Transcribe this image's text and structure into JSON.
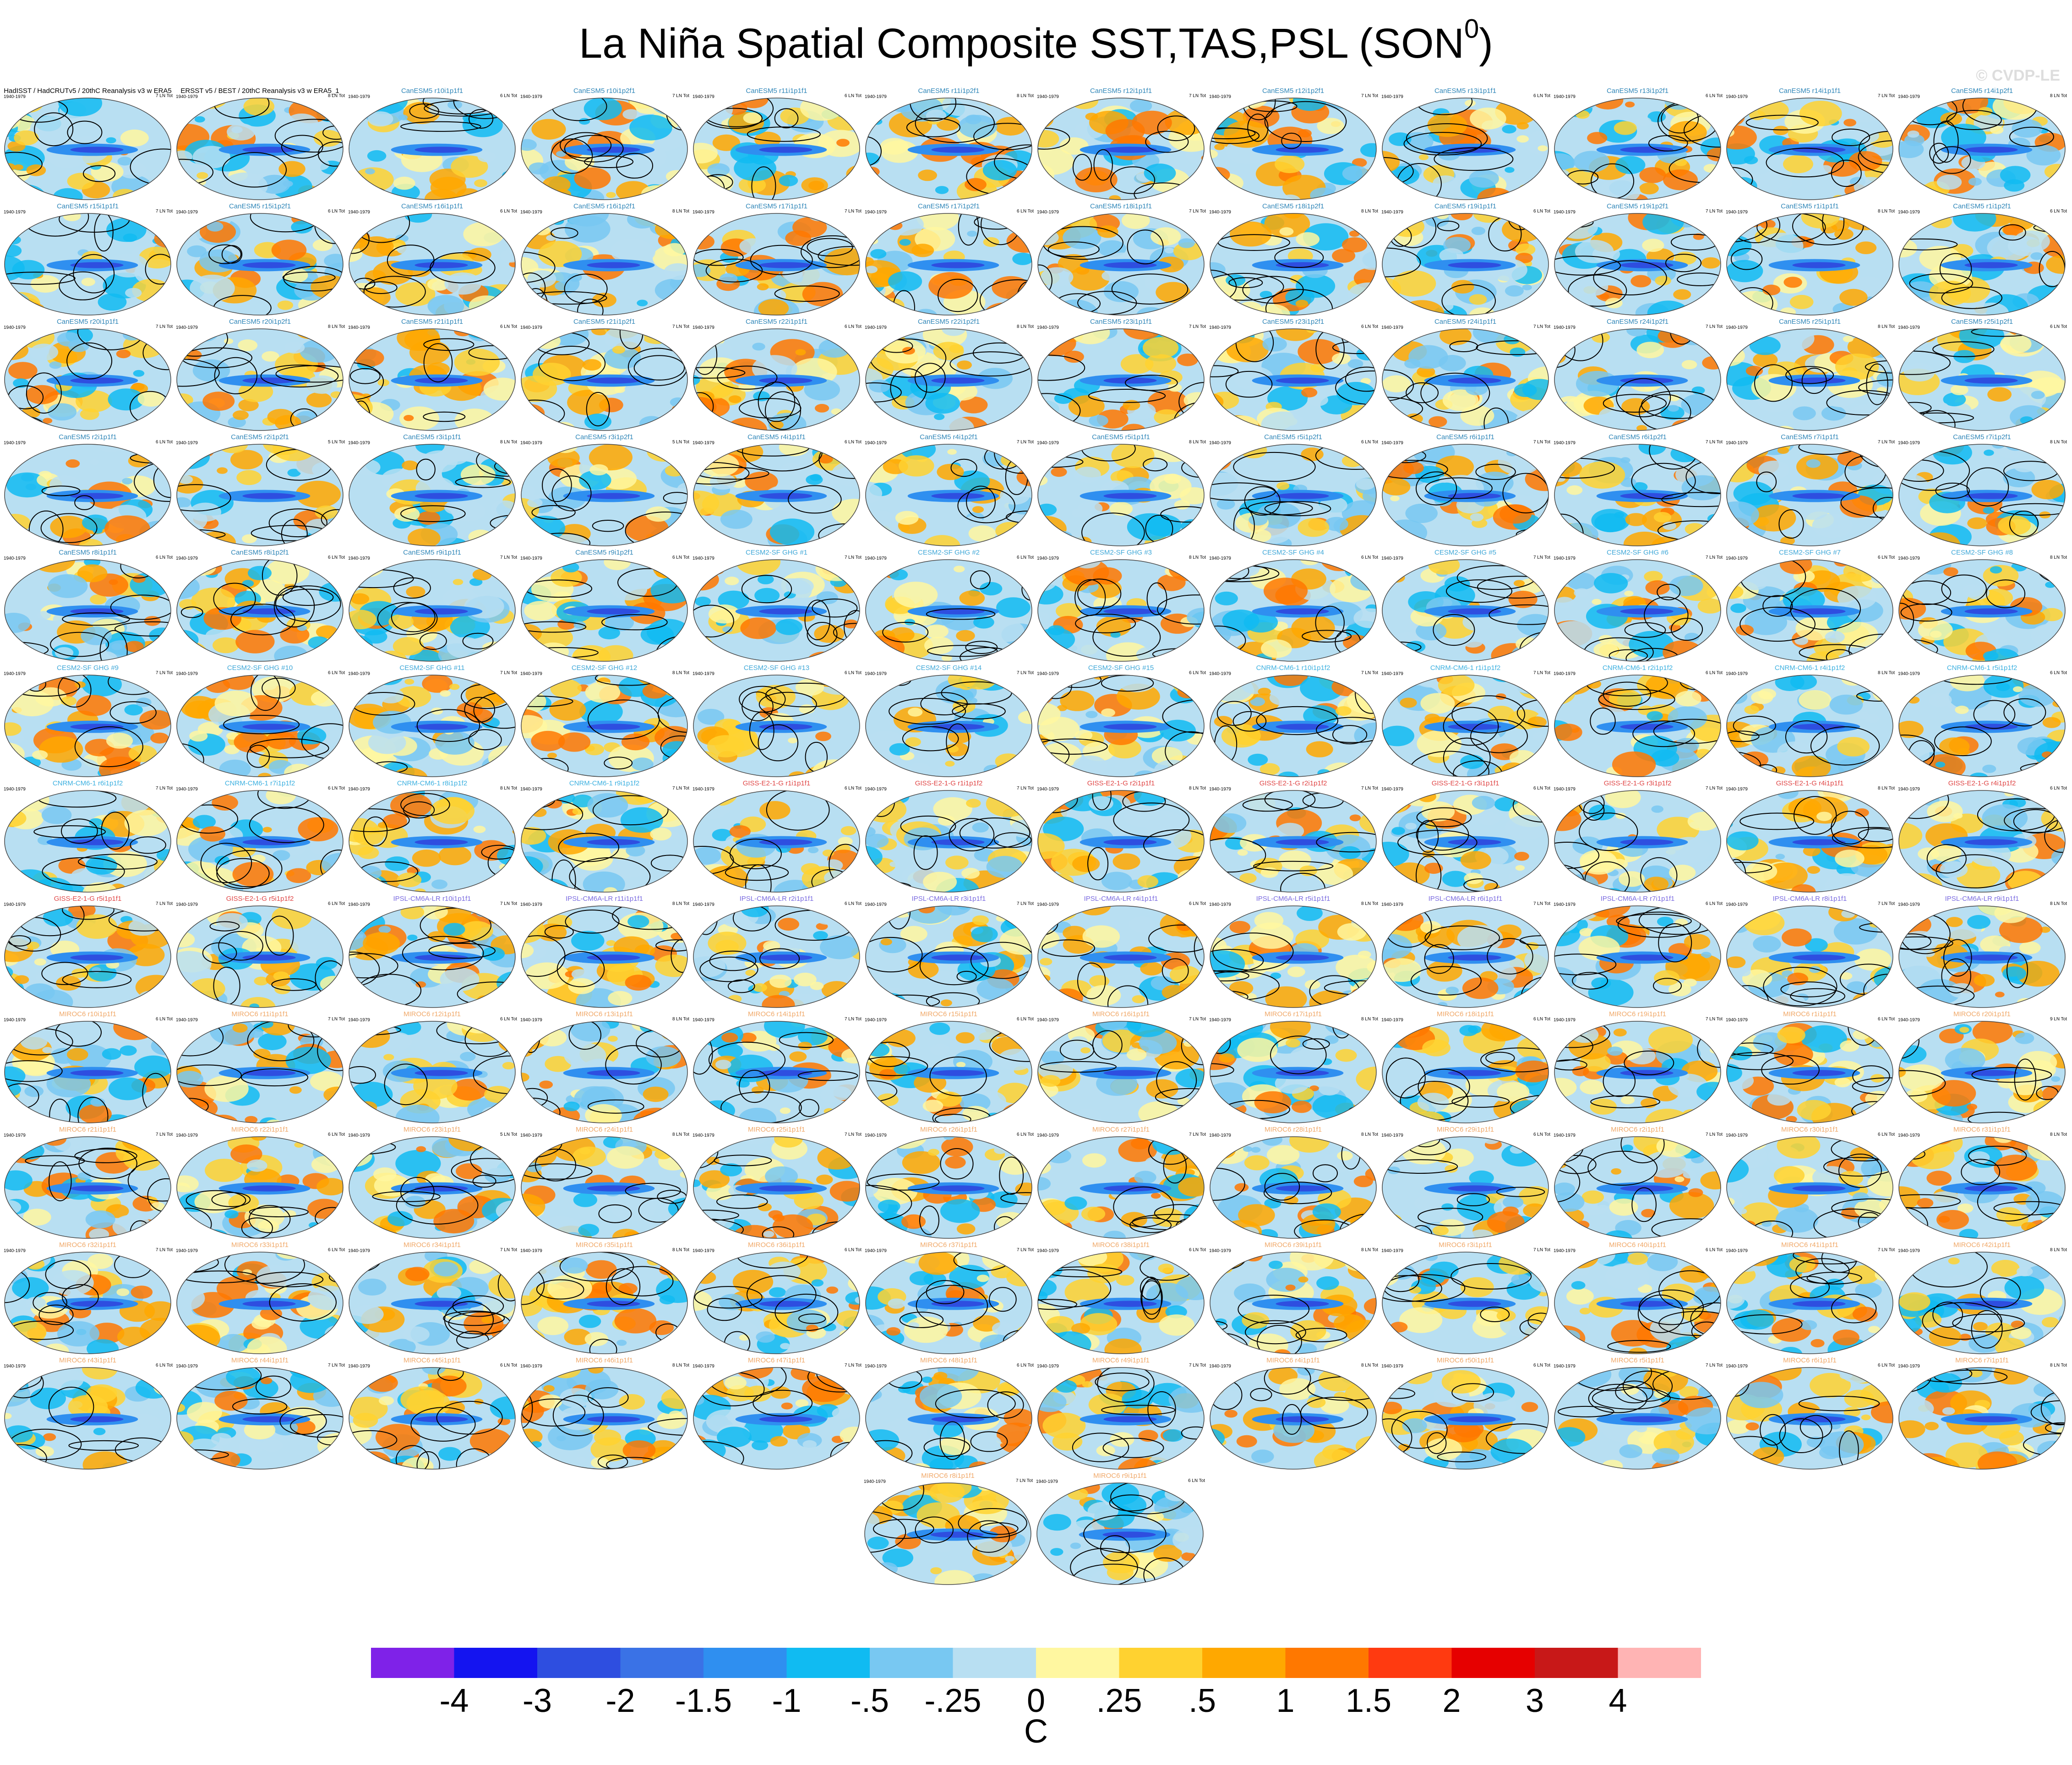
{
  "title": "La Niña Spatial Composite SST,TAS,PSL (SON",
  "title_superscript": "0",
  "title_close": ")",
  "watermark": "© CVDP-LE",
  "period": "1940-1979",
  "colors": {
    "ramp": [
      "#7f22e8",
      "#1414f0",
      "#2e4ee0",
      "#3a72e6",
      "#2f8ff0",
      "#10bbf2",
      "#78c8f2",
      "#b8dff2",
      "#fff7a0",
      "#ffd230",
      "#ffa800",
      "#ff7800",
      "#ff3a10",
      "#e60000",
      "#c81818",
      "#ffb4b4"
    ],
    "contour": "#000000"
  },
  "colorbar": {
    "labels": [
      "-4",
      "-3",
      "-2",
      "-1.5",
      "-1",
      "-.5",
      "-.25",
      "0",
      ".25",
      ".5",
      "1",
      "1.5",
      "2",
      "3",
      "4"
    ],
    "units": "C"
  },
  "chart_data": {
    "type": "heatmap",
    "description_fields": "Small-multiple global maps; shading = SST/TAS composite anomaly, contours = PSL composite anomaly",
    "panels": [
      {
        "name": "HadISST / HadCRUTv5 / 20thC Reanalysis v3 w ERA5",
        "stat": "7 LN Tot",
        "color": "#000000"
      },
      {
        "name": "ERSST v5 / BEST / 20thC Reanalysis v3 w ERA5_1",
        "stat": "8 LN Tot",
        "color": "#000000"
      },
      {
        "name": "CanESM5 r10i1p1f1",
        "stat": "6 LN Tot",
        "color": "#2f86b8"
      },
      {
        "name": "CanESM5 r10i1p2f1",
        "stat": "7 LN Tot",
        "color": "#2f86b8"
      },
      {
        "name": "CanESM5 r11i1p1f1",
        "stat": "6 LN Tot",
        "color": "#2f86b8"
      },
      {
        "name": "CanESM5 r11i1p2f1",
        "stat": "8 LN Tot",
        "color": "#2f86b8"
      },
      {
        "name": "CanESM5 r12i1p1f1",
        "stat": "7 LN Tot",
        "color": "#2f86b8"
      },
      {
        "name": "CanESM5 r12i1p2f1",
        "stat": "7 LN Tot",
        "color": "#2f86b8"
      },
      {
        "name": "CanESM5 r13i1p1f1",
        "stat": "6 LN Tot",
        "color": "#2f86b8"
      },
      {
        "name": "CanESM5 r13i1p2f1",
        "stat": "6 LN Tot",
        "color": "#2f86b8"
      },
      {
        "name": "CanESM5 r14i1p1f1",
        "stat": "7 LN Tot",
        "color": "#2f86b8"
      },
      {
        "name": "CanESM5 r14i1p2f1",
        "stat": "8 LN Tot",
        "color": "#2f86b8"
      },
      {
        "name": "CanESM5 r15i1p1f1",
        "stat": "7 LN Tot",
        "color": "#2f86b8"
      },
      {
        "name": "CanESM5 r15i1p2f1",
        "stat": "6 LN Tot",
        "color": "#2f86b8"
      },
      {
        "name": "CanESM5 r16i1p1f1",
        "stat": "6 LN Tot",
        "color": "#2f86b8"
      },
      {
        "name": "CanESM5 r16i1p2f1",
        "stat": "8 LN Tot",
        "color": "#2f86b8"
      },
      {
        "name": "CanESM5 r17i1p1f1",
        "stat": "7 LN Tot",
        "color": "#2f86b8"
      },
      {
        "name": "CanESM5 r17i1p2f1",
        "stat": "6 LN Tot",
        "color": "#2f86b8"
      },
      {
        "name": "CanESM5 r18i1p1f1",
        "stat": "7 LN Tot",
        "color": "#2f86b8"
      },
      {
        "name": "CanESM5 r18i1p2f1",
        "stat": "8 LN Tot",
        "color": "#2f86b8"
      },
      {
        "name": "CanESM5 r19i1p1f1",
        "stat": "6 LN Tot",
        "color": "#2f86b8"
      },
      {
        "name": "CanESM5 r19i1p2f1",
        "stat": "7 LN Tot",
        "color": "#2f86b8"
      },
      {
        "name": "CanESM5 r1i1p1f1",
        "stat": "8 LN Tot",
        "color": "#2f86b8"
      },
      {
        "name": "CanESM5 r1i1p2f1",
        "stat": "6 LN Tot",
        "color": "#2f86b8"
      },
      {
        "name": "CanESM5 r20i1p1f1",
        "stat": "7 LN Tot",
        "color": "#2f86b8"
      },
      {
        "name": "CanESM5 r20i1p2f1",
        "stat": "8 LN Tot",
        "color": "#2f86b8"
      },
      {
        "name": "CanESM5 r21i1p1f1",
        "stat": "6 LN Tot",
        "color": "#2f86b8"
      },
      {
        "name": "CanESM5 r21i1p2f1",
        "stat": "7 LN Tot",
        "color": "#2f86b8"
      },
      {
        "name": "CanESM5 r22i1p1f1",
        "stat": "6 LN Tot",
        "color": "#2f86b8"
      },
      {
        "name": "CanESM5 r22i1p2f1",
        "stat": "8 LN Tot",
        "color": "#2f86b8"
      },
      {
        "name": "CanESM5 r23i1p1f1",
        "stat": "7 LN Tot",
        "color": "#2f86b8"
      },
      {
        "name": "CanESM5 r23i1p2f1",
        "stat": "6 LN Tot",
        "color": "#2f86b8"
      },
      {
        "name": "CanESM5 r24i1p1f1",
        "stat": "7 LN Tot",
        "color": "#2f86b8"
      },
      {
        "name": "CanESM5 r24i1p2f1",
        "stat": "7 LN Tot",
        "color": "#2f86b8"
      },
      {
        "name": "CanESM5 r25i1p1f1",
        "stat": "8 LN Tot",
        "color": "#2f86b8"
      },
      {
        "name": "CanESM5 r25i1p2f1",
        "stat": "6 LN Tot",
        "color": "#2f86b8"
      },
      {
        "name": "CanESM5 r2i1p1f1",
        "stat": "6 LN Tot",
        "color": "#2f86b8"
      },
      {
        "name": "CanESM5 r2i1p2f1",
        "stat": "5 LN Tot",
        "color": "#2f86b8"
      },
      {
        "name": "CanESM5 r3i1p1f1",
        "stat": "8 LN Tot",
        "color": "#2f86b8"
      },
      {
        "name": "CanESM5 r3i1p2f1",
        "stat": "5 LN Tot",
        "color": "#2f86b8"
      },
      {
        "name": "CanESM5 r4i1p1f1",
        "stat": "6 LN Tot",
        "color": "#2f86b8"
      },
      {
        "name": "CanESM5 r4i1p2f1",
        "stat": "7 LN Tot",
        "color": "#2f86b8"
      },
      {
        "name": "CanESM5 r5i1p1f1",
        "stat": "8 LN Tot",
        "color": "#2f86b8"
      },
      {
        "name": "CanESM5 r5i1p2f1",
        "stat": "6 LN Tot",
        "color": "#2f86b8"
      },
      {
        "name": "CanESM5 r6i1p1f1",
        "stat": "7 LN Tot",
        "color": "#2f86b8"
      },
      {
        "name": "CanESM5 r6i1p2f1",
        "stat": "7 LN Tot",
        "color": "#2f86b8"
      },
      {
        "name": "CanESM5 r7i1p1f1",
        "stat": "7 LN Tot",
        "color": "#2f86b8"
      },
      {
        "name": "CanESM5 r7i1p2f1",
        "stat": "8 LN Tot",
        "color": "#2f86b8"
      },
      {
        "name": "CanESM5 r8i1p1f1",
        "stat": "6 LN Tot",
        "color": "#2f86b8"
      },
      {
        "name": "CanESM5 r8i1p2f1",
        "stat": "6 LN Tot",
        "color": "#2f86b8"
      },
      {
        "name": "CanESM5 r9i1p1f1",
        "stat": "7 LN Tot",
        "color": "#2f86b8"
      },
      {
        "name": "CanESM5 r9i1p2f1",
        "stat": "6 LN Tot",
        "color": "#2f86b8"
      },
      {
        "name": "CESM2-SF GHG #1",
        "stat": "7 LN Tot",
        "color": "#40a8d8"
      },
      {
        "name": "CESM2-SF GHG #2",
        "stat": "6 LN Tot",
        "color": "#40a8d8"
      },
      {
        "name": "CESM2-SF GHG #3",
        "stat": "8 LN Tot",
        "color": "#40a8d8"
      },
      {
        "name": "CESM2-SF GHG #4",
        "stat": "6 LN Tot",
        "color": "#40a8d8"
      },
      {
        "name": "CESM2-SF GHG #5",
        "stat": "7 LN Tot",
        "color": "#40a8d8"
      },
      {
        "name": "CESM2-SF GHG #6",
        "stat": "7 LN Tot",
        "color": "#40a8d8"
      },
      {
        "name": "CESM2-SF GHG #7",
        "stat": "6 LN Tot",
        "color": "#40a8d8"
      },
      {
        "name": "CESM2-SF GHG #8",
        "stat": "8 LN Tot",
        "color": "#40a8d8"
      },
      {
        "name": "CESM2-SF GHG #9",
        "stat": "7 LN Tot",
        "color": "#40a8d8"
      },
      {
        "name": "CESM2-SF GHG #10",
        "stat": "6 LN Tot",
        "color": "#40a8d8"
      },
      {
        "name": "CESM2-SF GHG #11",
        "stat": "7 LN Tot",
        "color": "#40a8d8"
      },
      {
        "name": "CESM2-SF GHG #12",
        "stat": "8 LN Tot",
        "color": "#40a8d8"
      },
      {
        "name": "CESM2-SF GHG #13",
        "stat": "6 LN Tot",
        "color": "#40a8d8"
      },
      {
        "name": "CESM2-SF GHG #14",
        "stat": "7 LN Tot",
        "color": "#40a8d8"
      },
      {
        "name": "CESM2-SF GHG #15",
        "stat": "6 LN Tot",
        "color": "#40a8d8"
      },
      {
        "name": "CNRM-CM6-1 r10i1p1f2",
        "stat": "7 LN Tot",
        "color": "#3cb0e0"
      },
      {
        "name": "CNRM-CM6-1 r1i1p1f2",
        "stat": "7 LN Tot",
        "color": "#3cb0e0"
      },
      {
        "name": "CNRM-CM6-1 r2i1p1f2",
        "stat": "6 LN Tot",
        "color": "#3cb0e0"
      },
      {
        "name": "CNRM-CM6-1 r4i1p1f2",
        "stat": "8 LN Tot",
        "color": "#3cb0e0"
      },
      {
        "name": "CNRM-CM6-1 r5i1p1f2",
        "stat": "6 LN Tot",
        "color": "#3cb0e0"
      },
      {
        "name": "CNRM-CM6-1 r6i1p1f2",
        "stat": "7 LN Tot",
        "color": "#3cb0e0"
      },
      {
        "name": "CNRM-CM6-1 r7i1p1f2",
        "stat": "6 LN Tot",
        "color": "#3cb0e0"
      },
      {
        "name": "CNRM-CM6-1 r8i1p1f2",
        "stat": "8 LN Tot",
        "color": "#3cb0e0"
      },
      {
        "name": "CNRM-CM6-1 r9i1p1f2",
        "stat": "7 LN Tot",
        "color": "#3cb0e0"
      },
      {
        "name": "GISS-E2-1-G r1i1p1f1",
        "stat": "6 LN Tot",
        "color": "#e04646"
      },
      {
        "name": "GISS-E2-1-G r1i1p1f2",
        "stat": "7 LN Tot",
        "color": "#e04646"
      },
      {
        "name": "GISS-E2-1-G r2i1p1f1",
        "stat": "8 LN Tot",
        "color": "#e04646"
      },
      {
        "name": "GISS-E2-1-G r2i1p1f2",
        "stat": "7 LN Tot",
        "color": "#e04646"
      },
      {
        "name": "GISS-E2-1-G r3i1p1f1",
        "stat": "6 LN Tot",
        "color": "#e04646"
      },
      {
        "name": "GISS-E2-1-G r3i1p1f2",
        "stat": "7 LN Tot",
        "color": "#e04646"
      },
      {
        "name": "GISS-E2-1-G r4i1p1f1",
        "stat": "8 LN Tot",
        "color": "#e04646"
      },
      {
        "name": "GISS-E2-1-G r4i1p1f2",
        "stat": "6 LN Tot",
        "color": "#e04646"
      },
      {
        "name": "GISS-E2-1-G r5i1p1f1",
        "stat": "7 LN Tot",
        "color": "#e04646"
      },
      {
        "name": "GISS-E2-1-G r5i1p1f2",
        "stat": "6 LN Tot",
        "color": "#e04646"
      },
      {
        "name": "IPSL-CM6A-LR r10i1p1f1",
        "stat": "7 LN Tot",
        "color": "#7a6ae0"
      },
      {
        "name": "IPSL-CM6A-LR r11i1p1f1",
        "stat": "8 LN Tot",
        "color": "#7a6ae0"
      },
      {
        "name": "IPSL-CM6A-LR r2i1p1f1",
        "stat": "6 LN Tot",
        "color": "#7a6ae0"
      },
      {
        "name": "IPSL-CM6A-LR r3i1p1f1",
        "stat": "7 LN Tot",
        "color": "#7a6ae0"
      },
      {
        "name": "IPSL-CM6A-LR r4i1p1f1",
        "stat": "6 LN Tot",
        "color": "#7a6ae0"
      },
      {
        "name": "IPSL-CM6A-LR r5i1p1f1",
        "stat": "8 LN Tot",
        "color": "#7a6ae0"
      },
      {
        "name": "IPSL-CM6A-LR r6i1p1f1",
        "stat": "7 LN Tot",
        "color": "#7a6ae0"
      },
      {
        "name": "IPSL-CM6A-LR r7i1p1f1",
        "stat": "6 LN Tot",
        "color": "#7a6ae0"
      },
      {
        "name": "IPSL-CM6A-LR r8i1p1f1",
        "stat": "7 LN Tot",
        "color": "#7a6ae0"
      },
      {
        "name": "IPSL-CM6A-LR r9i1p1f1",
        "stat": "8 LN Tot",
        "color": "#7a6ae0"
      },
      {
        "name": "MIROC6 r10i1p1f1",
        "stat": "6 LN Tot",
        "color": "#f0a868"
      },
      {
        "name": "MIROC6 r11i1p1f1",
        "stat": "7 LN Tot",
        "color": "#f0a868"
      },
      {
        "name": "MIROC6 r12i1p1f1",
        "stat": "6 LN Tot",
        "color": "#f0a868"
      },
      {
        "name": "MIROC6 r13i1p1f1",
        "stat": "8 LN Tot",
        "color": "#f0a868"
      },
      {
        "name": "MIROC6 r14i1p1f1",
        "stat": "7 LN Tot",
        "color": "#f0a868"
      },
      {
        "name": "MIROC6 r15i1p1f1",
        "stat": "6 LN Tot",
        "color": "#f0a868"
      },
      {
        "name": "MIROC6 r16i1p1f1",
        "stat": "7 LN Tot",
        "color": "#f0a868"
      },
      {
        "name": "MIROC6 r17i1p1f1",
        "stat": "8 LN Tot",
        "color": "#f0a868"
      },
      {
        "name": "MIROC6 r18i1p1f1",
        "stat": "6 LN Tot",
        "color": "#f0a868"
      },
      {
        "name": "MIROC6 r19i1p1f1",
        "stat": "7 LN Tot",
        "color": "#f0a868"
      },
      {
        "name": "MIROC6 r1i1p1f1",
        "stat": "6 LN Tot",
        "color": "#f0a868"
      },
      {
        "name": "MIROC6 r20i1p1f1",
        "stat": "9 LN Tot",
        "color": "#f0a868"
      },
      {
        "name": "MIROC6 r21i1p1f1",
        "stat": "7 LN Tot",
        "color": "#f0a868"
      },
      {
        "name": "MIROC6 r22i1p1f1",
        "stat": "6 LN Tot",
        "color": "#f0a868"
      },
      {
        "name": "MIROC6 r23i1p1f1",
        "stat": "5 LN Tot",
        "color": "#f0a868"
      },
      {
        "name": "MIROC6 r24i1p1f1",
        "stat": "8 LN Tot",
        "color": "#f0a868"
      },
      {
        "name": "MIROC6 r25i1p1f1",
        "stat": "7 LN Tot",
        "color": "#f0a868"
      },
      {
        "name": "MIROC6 r26i1p1f1",
        "stat": "6 LN Tot",
        "color": "#f0a868"
      },
      {
        "name": "MIROC6 r27i1p1f1",
        "stat": "7 LN Tot",
        "color": "#f0a868"
      },
      {
        "name": "MIROC6 r28i1p1f1",
        "stat": "8 LN Tot",
        "color": "#f0a868"
      },
      {
        "name": "MIROC6 r29i1p1f1",
        "stat": "6 LN Tot",
        "color": "#f0a868"
      },
      {
        "name": "MIROC6 r2i1p1f1",
        "stat": "7 LN Tot",
        "color": "#f0a868"
      },
      {
        "name": "MIROC6 r30i1p1f1",
        "stat": "6 LN Tot",
        "color": "#f0a868"
      },
      {
        "name": "MIROC6 r31i1p1f1",
        "stat": "8 LN Tot",
        "color": "#f0a868"
      },
      {
        "name": "MIROC6 r32i1p1f1",
        "stat": "7 LN Tot",
        "color": "#f0a868"
      },
      {
        "name": "MIROC6 r33i1p1f1",
        "stat": "6 LN Tot",
        "color": "#f0a868"
      },
      {
        "name": "MIROC6 r34i1p1f1",
        "stat": "7 LN Tot",
        "color": "#f0a868"
      },
      {
        "name": "MIROC6 r35i1p1f1",
        "stat": "8 LN Tot",
        "color": "#f0a868"
      },
      {
        "name": "MIROC6 r36i1p1f1",
        "stat": "6 LN Tot",
        "color": "#f0a868"
      },
      {
        "name": "MIROC6 r37i1p1f1",
        "stat": "7 LN Tot",
        "color": "#f0a868"
      },
      {
        "name": "MIROC6 r38i1p1f1",
        "stat": "6 LN Tot",
        "color": "#f0a868"
      },
      {
        "name": "MIROC6 r39i1p1f1",
        "stat": "8 LN Tot",
        "color": "#f0a868"
      },
      {
        "name": "MIROC6 r3i1p1f1",
        "stat": "7 LN Tot",
        "color": "#f0a868"
      },
      {
        "name": "MIROC6 r40i1p1f1",
        "stat": "6 LN Tot",
        "color": "#f0a868"
      },
      {
        "name": "MIROC6 r41i1p1f1",
        "stat": "7 LN Tot",
        "color": "#f0a868"
      },
      {
        "name": "MIROC6 r42i1p1f1",
        "stat": "8 LN Tot",
        "color": "#f0a868"
      },
      {
        "name": "MIROC6 r43i1p1f1",
        "stat": "6 LN Tot",
        "color": "#f0a868"
      },
      {
        "name": "MIROC6 r44i1p1f1",
        "stat": "7 LN Tot",
        "color": "#f0a868"
      },
      {
        "name": "MIROC6 r45i1p1f1",
        "stat": "6 LN Tot",
        "color": "#f0a868"
      },
      {
        "name": "MIROC6 r46i1p1f1",
        "stat": "8 LN Tot",
        "color": "#f0a868"
      },
      {
        "name": "MIROC6 r47i1p1f1",
        "stat": "7 LN Tot",
        "color": "#f0a868"
      },
      {
        "name": "MIROC6 r48i1p1f1",
        "stat": "6 LN Tot",
        "color": "#f0a868"
      },
      {
        "name": "MIROC6 r49i1p1f1",
        "stat": "7 LN Tot",
        "color": "#f0a868"
      },
      {
        "name": "MIROC6 r4i1p1f1",
        "stat": "8 LN Tot",
        "color": "#f0a868"
      },
      {
        "name": "MIROC6 r50i1p1f1",
        "stat": "6 LN Tot",
        "color": "#f0a868"
      },
      {
        "name": "MIROC6 r5i1p1f1",
        "stat": "7 LN Tot",
        "color": "#f0a868"
      },
      {
        "name": "MIROC6 r6i1p1f1",
        "stat": "6 LN Tot",
        "color": "#f0a868"
      },
      {
        "name": "MIROC6 r7i1p1f1",
        "stat": "8 LN Tot",
        "color": "#f0a868"
      },
      {
        "name": "MIROC6 r8i1p1f1",
        "stat": "7 LN Tot",
        "color": "#f0a868"
      },
      {
        "name": "MIROC6 r9i1p1f1",
        "stat": "6 LN Tot",
        "color": "#f0a868"
      }
    ]
  }
}
